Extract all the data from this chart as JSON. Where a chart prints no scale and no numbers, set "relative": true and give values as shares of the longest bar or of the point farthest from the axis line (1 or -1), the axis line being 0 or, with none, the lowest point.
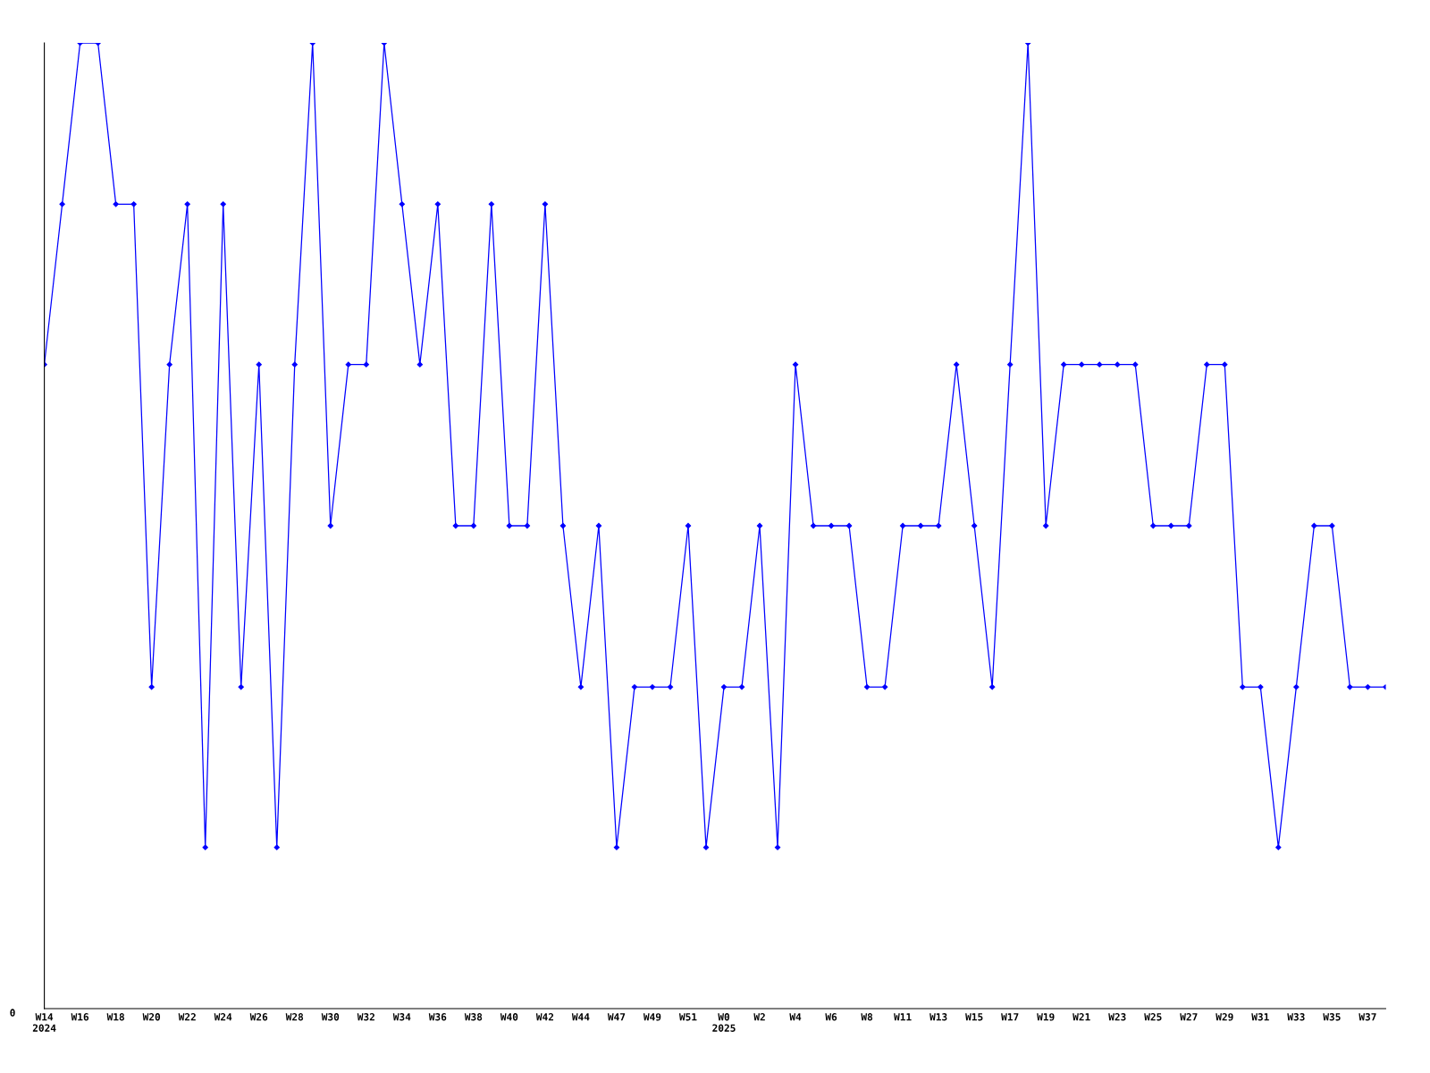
{
  "chart_data": {
    "type": "line",
    "relative": true,
    "marker": "diamond",
    "grid": false,
    "categories": [
      "W14\n2024",
      null,
      "W16",
      null,
      "W18",
      null,
      "W20",
      null,
      "W22",
      null,
      "W24",
      null,
      "W26",
      null,
      "W28",
      null,
      "W30",
      null,
      "W32",
      null,
      "W34",
      null,
      "W36",
      null,
      "W38",
      null,
      "W40",
      null,
      "W42",
      null,
      "W44",
      null,
      "W47",
      null,
      "W49",
      null,
      "W51",
      null,
      "W0\n2025",
      null,
      "W2",
      null,
      "W4",
      null,
      "W6",
      null,
      "W8",
      null,
      "W11",
      null,
      "W13",
      null,
      "W15",
      null,
      "W17",
      null,
      "W19",
      null,
      "W21",
      null,
      "W23",
      null,
      "W25",
      null,
      "W27",
      null,
      "W29",
      null,
      "W31",
      null,
      "W33",
      null,
      "W35",
      null,
      "W37",
      null
    ],
    "series": [
      {
        "color": "#0000ff",
        "values": [
          0.667,
          0.833,
          1,
          1,
          0.833,
          0.833,
          0.333,
          0.667,
          0.833,
          0.167,
          0.833,
          0.333,
          0.667,
          0.167,
          0.667,
          1,
          0.5,
          0.667,
          0.667,
          1,
          0.833,
          0.667,
          0.833,
          0.5,
          0.5,
          0.833,
          0.5,
          0.5,
          0.833,
          0.5,
          0.333,
          0.5,
          0.167,
          0.333,
          0.333,
          0.333,
          0.5,
          0.167,
          0.333,
          0.333,
          0.5,
          0.167,
          0.667,
          0.5,
          0.5,
          0.5,
          0.333,
          0.333,
          0.5,
          0.5,
          0.5,
          0.667,
          0.5,
          0.333,
          0.667,
          1,
          0.5,
          0.667,
          0.667,
          0.667,
          0.667,
          0.667,
          0.5,
          0.5,
          0.5,
          0.667,
          0.667,
          0.333,
          0.333,
          0.167,
          0.333,
          0.5,
          0.5,
          0.333,
          0.333,
          0.333
        ]
      }
    ],
    "annotations": [
      "0"
    ]
  }
}
